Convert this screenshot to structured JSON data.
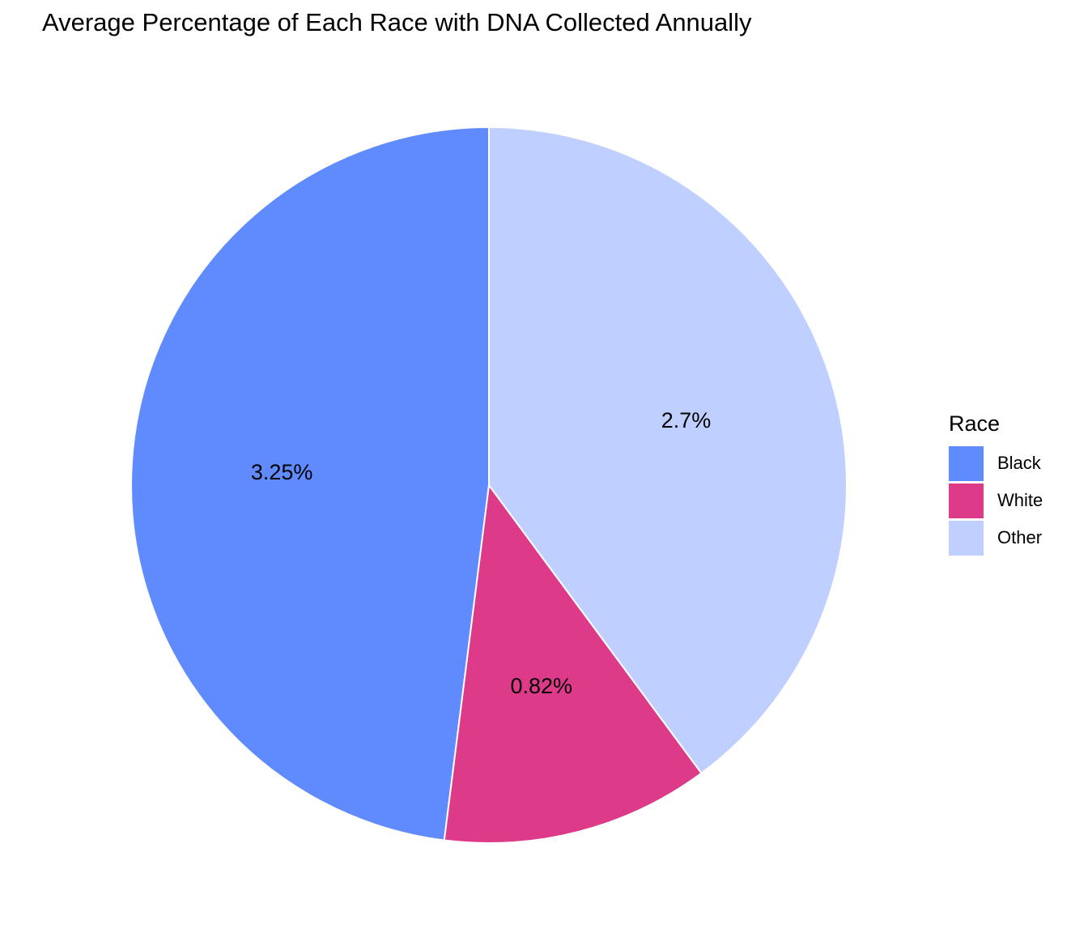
{
  "chart_data": {
    "type": "pie",
    "title": "Average Percentage of Each Race with DNA Collected Annually",
    "legend_title": "Race",
    "legend_position": "right",
    "slices": [
      {
        "category": "Black",
        "value": 3.25,
        "label": "3.25%",
        "color": "#5f8bff"
      },
      {
        "category": "White",
        "value": 0.82,
        "label": "0.82%",
        "color": "#dd3a89"
      },
      {
        "category": "Other",
        "value": 2.7,
        "label": "2.7%",
        "color": "#bfcfff"
      }
    ],
    "start_direction": "top",
    "direction": "counterclockwise"
  }
}
